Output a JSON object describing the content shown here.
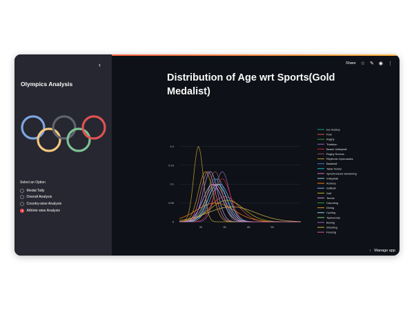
{
  "sidebar": {
    "title": "Olympics Analysis",
    "radio_label": "Select an Option",
    "options": [
      "Medal Tally",
      "Overall Analysis",
      "Country-wise Analysis",
      "Athlete wise Analysis"
    ],
    "selected_index": 3
  },
  "toolbar": {
    "share_label": "Share",
    "icons": [
      "star-icon",
      "edit-icon",
      "github-icon",
      "more-icon"
    ]
  },
  "main": {
    "title": "Distribution of Age wrt Sports(Gold Medalist)"
  },
  "footer": {
    "manage_label": "Manage app"
  },
  "colors": {
    "background": "#0e1117",
    "sidebar": "#262730",
    "accent": "#ff4b4b",
    "rings": [
      "#7ea6e0",
      "#f5c77e",
      "#60646e",
      "#7ec394",
      "#e05252"
    ]
  },
  "chart_data": {
    "type": "line",
    "xticks": [
      "20",
      "30",
      "40",
      "50"
    ],
    "yticks": [
      "0",
      "0.05",
      "0.1",
      "0.15",
      "0.2"
    ],
    "xlim": [
      11,
      62
    ],
    "ylim": [
      0,
      0.23
    ],
    "legend_position": "right",
    "series": [
      {
        "name": "Ice Hockey",
        "color": "#1f9e89",
        "mean": 26,
        "sd": 3.5
      },
      {
        "name": "Polo",
        "color": "#e05252",
        "mean": 30,
        "sd": 6
      },
      {
        "name": "Rugby",
        "color": "#2ca02c",
        "mean": 24,
        "sd": 3
      },
      {
        "name": "Triathlon",
        "color": "#9467bd",
        "mean": 29,
        "sd": 3
      },
      {
        "name": "Beach Volleyball",
        "color": "#d62728",
        "mean": 29,
        "sd": 3.5
      },
      {
        "name": "Rugby Sevens",
        "color": "#8c564b",
        "mean": 26,
        "sd": 3
      },
      {
        "name": "Rhythmic Gymnastics",
        "color": "#c0a030",
        "mean": 19,
        "sd": 2
      },
      {
        "name": "Baseball",
        "color": "#4a7fd4",
        "mean": 27,
        "sd": 3.5
      },
      {
        "name": "Table Tennis",
        "color": "#17becf",
        "mean": 25,
        "sd": 4
      },
      {
        "name": "Synchronized Swimming",
        "color": "#e377c2",
        "mean": 23,
        "sd": 3
      },
      {
        "name": "Volleyball",
        "color": "#8fd1e8",
        "mean": 26,
        "sd": 4
      },
      {
        "name": "Archery",
        "color": "#ff7f0e",
        "mean": 26,
        "sd": 8
      },
      {
        "name": "Softball",
        "color": "#7fb3ff",
        "mean": 28,
        "sd": 4
      },
      {
        "name": "Golf",
        "color": "#bcbd22",
        "mean": 31,
        "sd": 7
      },
      {
        "name": "Tennis",
        "color": "#e08ce0",
        "mean": 25,
        "sd": 4
      },
      {
        "name": "Canoeing",
        "color": "#2ca02c",
        "mean": 26,
        "sd": 4
      },
      {
        "name": "Diving",
        "color": "#d6a020",
        "mean": 22,
        "sd": 3
      },
      {
        "name": "Cycling",
        "color": "#9edae5",
        "mean": 27,
        "sd": 4
      },
      {
        "name": "Taekwondo",
        "color": "#7fd47f",
        "mean": 24,
        "sd": 3
      },
      {
        "name": "Boxing",
        "color": "#9467bd",
        "mean": 24,
        "sd": 3
      },
      {
        "name": "Shooting",
        "color": "#d4b84a",
        "mean": 33,
        "sd": 10
      },
      {
        "name": "Fencing",
        "color": "#e05d9e",
        "mean": 26,
        "sd": 4
      }
    ]
  }
}
